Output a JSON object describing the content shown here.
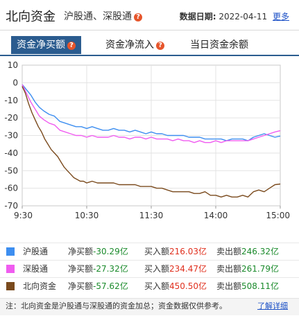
{
  "header": {
    "title": "北向资金",
    "subtitle": "沪股通、深股通",
    "date_label": "数据日期:",
    "date_value": "2022-04-11",
    "more_label": "更多"
  },
  "tabs": [
    {
      "label": "资金净买额",
      "active": true
    },
    {
      "label": "资金净流入",
      "active": false
    },
    {
      "label": "当日资金余额",
      "active": false
    }
  ],
  "chart_data": {
    "type": "line",
    "title": "",
    "ylim": [
      -70,
      10
    ],
    "y_ticks": [
      "10",
      "0",
      "-10",
      "-20",
      "-30",
      "-40",
      "-50",
      "-60",
      "-70"
    ],
    "x_ticks": [
      "9:30",
      "10:30",
      "11:30",
      "14:00",
      "15:00"
    ],
    "x_range_minutes": [
      0,
      240
    ],
    "grid": true,
    "series": [
      {
        "name": "沪股通",
        "color": "#3d8ef0",
        "points": [
          [
            0,
            -1
          ],
          [
            4,
            -4
          ],
          [
            8,
            -7
          ],
          [
            12,
            -11
          ],
          [
            16,
            -14
          ],
          [
            20,
            -16
          ],
          [
            25,
            -18
          ],
          [
            30,
            -19
          ],
          [
            35,
            -22
          ],
          [
            40,
            -23
          ],
          [
            45,
            -24
          ],
          [
            50,
            -25
          ],
          [
            55,
            -25
          ],
          [
            60,
            -26
          ],
          [
            65,
            -25
          ],
          [
            70,
            -26
          ],
          [
            75,
            -27
          ],
          [
            80,
            -27
          ],
          [
            85,
            -26
          ],
          [
            90,
            -27
          ],
          [
            95,
            -27
          ],
          [
            100,
            -28
          ],
          [
            105,
            -27
          ],
          [
            110,
            -28
          ],
          [
            115,
            -29
          ],
          [
            120,
            -28
          ],
          [
            125,
            -29
          ],
          [
            130,
            -29
          ],
          [
            135,
            -30
          ],
          [
            140,
            -30
          ],
          [
            145,
            -30
          ],
          [
            150,
            -30
          ],
          [
            155,
            -31
          ],
          [
            160,
            -31
          ],
          [
            165,
            -31
          ],
          [
            170,
            -32
          ],
          [
            175,
            -32
          ],
          [
            180,
            -32
          ],
          [
            185,
            -32
          ],
          [
            190,
            -33
          ],
          [
            195,
            -32
          ],
          [
            200,
            -32
          ],
          [
            205,
            -32
          ],
          [
            210,
            -33
          ],
          [
            215,
            -31
          ],
          [
            220,
            -30
          ],
          [
            225,
            -29
          ],
          [
            230,
            -30
          ],
          [
            235,
            -31
          ],
          [
            240,
            -30.3
          ]
        ]
      },
      {
        "name": "深股通",
        "color": "#f05cf0",
        "points": [
          [
            0,
            -1
          ],
          [
            4,
            -6
          ],
          [
            8,
            -11
          ],
          [
            12,
            -15
          ],
          [
            16,
            -19
          ],
          [
            20,
            -21
          ],
          [
            25,
            -23
          ],
          [
            30,
            -24
          ],
          [
            35,
            -27
          ],
          [
            40,
            -28
          ],
          [
            45,
            -29
          ],
          [
            50,
            -30
          ],
          [
            55,
            -30
          ],
          [
            60,
            -31
          ],
          [
            65,
            -30
          ],
          [
            70,
            -31
          ],
          [
            75,
            -31
          ],
          [
            80,
            -31
          ],
          [
            85,
            -30
          ],
          [
            90,
            -31
          ],
          [
            95,
            -31
          ],
          [
            100,
            -32
          ],
          [
            105,
            -31
          ],
          [
            110,
            -31
          ],
          [
            115,
            -32
          ],
          [
            120,
            -31
          ],
          [
            125,
            -32
          ],
          [
            130,
            -32
          ],
          [
            135,
            -32
          ],
          [
            140,
            -33
          ],
          [
            145,
            -32
          ],
          [
            150,
            -33
          ],
          [
            155,
            -33
          ],
          [
            160,
            -34
          ],
          [
            165,
            -33
          ],
          [
            170,
            -34
          ],
          [
            175,
            -34
          ],
          [
            180,
            -33
          ],
          [
            185,
            -34
          ],
          [
            190,
            -33
          ],
          [
            195,
            -33
          ],
          [
            200,
            -33
          ],
          [
            205,
            -33
          ],
          [
            210,
            -33
          ],
          [
            215,
            -32
          ],
          [
            220,
            -31
          ],
          [
            225,
            -30
          ],
          [
            230,
            -29
          ],
          [
            235,
            -28
          ],
          [
            240,
            -27.3
          ]
        ]
      },
      {
        "name": "北向资金",
        "color": "#7a4a1d",
        "points": [
          [
            0,
            -2
          ],
          [
            3,
            -6
          ],
          [
            6,
            -12
          ],
          [
            9,
            -17
          ],
          [
            12,
            -21
          ],
          [
            15,
            -25
          ],
          [
            18,
            -28
          ],
          [
            21,
            -32
          ],
          [
            24,
            -35
          ],
          [
            27,
            -38
          ],
          [
            30,
            -40
          ],
          [
            33,
            -42
          ],
          [
            36,
            -45
          ],
          [
            39,
            -48
          ],
          [
            42,
            -50
          ],
          [
            45,
            -52
          ],
          [
            48,
            -54
          ],
          [
            51,
            -55
          ],
          [
            54,
            -56
          ],
          [
            57,
            -56
          ],
          [
            60,
            -57
          ],
          [
            65,
            -56
          ],
          [
            70,
            -57
          ],
          [
            75,
            -57
          ],
          [
            80,
            -57
          ],
          [
            85,
            -57
          ],
          [
            90,
            -58
          ],
          [
            95,
            -58
          ],
          [
            100,
            -58
          ],
          [
            105,
            -58
          ],
          [
            110,
            -59
          ],
          [
            115,
            -59
          ],
          [
            120,
            -59
          ],
          [
            125,
            -60
          ],
          [
            130,
            -60
          ],
          [
            135,
            -61
          ],
          [
            140,
            -62
          ],
          [
            145,
            -62
          ],
          [
            150,
            -62
          ],
          [
            155,
            -62
          ],
          [
            160,
            -63
          ],
          [
            165,
            -63
          ],
          [
            170,
            -62
          ],
          [
            175,
            -64
          ],
          [
            180,
            -64
          ],
          [
            185,
            -65
          ],
          [
            190,
            -64
          ],
          [
            195,
            -65
          ],
          [
            200,
            -65
          ],
          [
            205,
            -64
          ],
          [
            210,
            -65
          ],
          [
            215,
            -62
          ],
          [
            220,
            -61
          ],
          [
            225,
            -62
          ],
          [
            230,
            -60
          ],
          [
            235,
            -58
          ],
          [
            240,
            -57.6
          ]
        ]
      }
    ]
  },
  "legend": [
    {
      "name": "沪股通",
      "color": "#3d8ef0",
      "net_label": "净买额",
      "net": "-30.29亿",
      "buy_label": "买入额",
      "buy": "216.03亿",
      "sell_label": "卖出额",
      "sell": "246.32亿"
    },
    {
      "name": "深股通",
      "color": "#f05cf0",
      "net_label": "净买额",
      "net": "-27.32亿",
      "buy_label": "买入额",
      "buy": "234.47亿",
      "sell_label": "卖出额",
      "sell": "261.79亿"
    },
    {
      "name": "北向资金",
      "color": "#7a4a1d",
      "net_label": "净买额",
      "net": "-57.62亿",
      "buy_label": "买入额",
      "buy": "450.50亿",
      "sell_label": "卖出额",
      "sell": "508.11亿"
    }
  ],
  "note": {
    "text": "注：北向资金是沪股通与深股通的资金加总；资金数据仅供参考。",
    "link": "了解详细"
  }
}
